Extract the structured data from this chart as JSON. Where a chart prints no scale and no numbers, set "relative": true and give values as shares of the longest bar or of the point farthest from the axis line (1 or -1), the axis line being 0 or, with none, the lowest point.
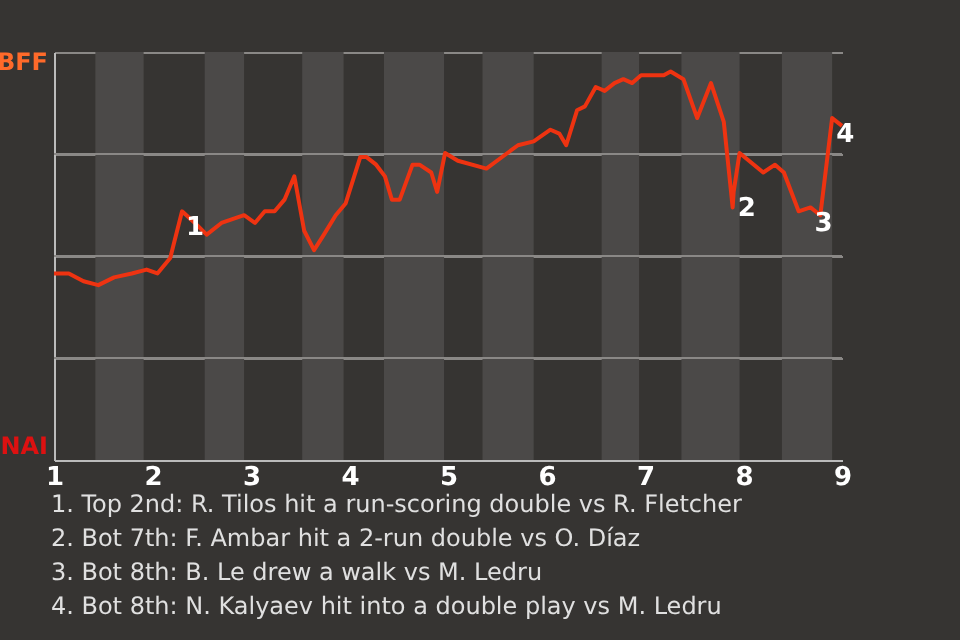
{
  "chart_data": {
    "type": "line",
    "relative": true,
    "x": [
      1.0,
      1.15,
      1.3,
      1.45,
      1.61,
      1.79,
      1.94,
      2.05,
      2.18,
      2.3,
      2.43,
      2.55,
      2.7,
      2.93,
      3.04,
      3.14,
      3.24,
      3.34,
      3.44,
      3.54,
      3.64,
      3.74,
      3.86,
      3.96,
      4.11,
      4.17,
      4.27,
      4.36,
      4.43,
      4.51,
      4.64,
      4.71,
      4.83,
      4.89,
      4.97,
      5.1,
      5.39,
      5.71,
      5.87,
      6.04,
      6.13,
      6.2,
      6.31,
      6.39,
      6.5,
      6.59,
      6.69,
      6.78,
      6.87,
      6.96,
      7.04,
      7.11,
      7.19,
      7.26,
      7.39,
      7.53,
      7.67,
      7.8,
      7.89,
      7.9,
      7.96,
      8.2,
      8.32,
      8.41,
      8.56,
      8.68,
      8.78,
      8.9,
      9.0
    ],
    "series": [
      {
        "color": "#ee3311",
        "values": [
          0.48,
          0.48,
          0.46,
          0.45,
          0.47,
          0.48,
          0.49,
          0.48,
          0.52,
          0.64,
          0.61,
          0.58,
          0.61,
          0.63,
          0.61,
          0.64,
          0.64,
          0.67,
          0.73,
          0.59,
          0.54,
          0.58,
          0.63,
          0.66,
          0.78,
          0.78,
          0.76,
          0.73,
          0.67,
          0.67,
          0.76,
          0.76,
          0.74,
          0.69,
          0.79,
          0.77,
          0.75,
          0.81,
          0.82,
          0.85,
          0.84,
          0.81,
          0.9,
          0.91,
          0.96,
          0.95,
          0.97,
          0.98,
          0.97,
          0.99,
          0.99,
          0.99,
          0.99,
          1,
          0.98,
          0.88,
          0.97,
          0.87,
          0.65,
          0.69,
          0.79,
          0.74,
          0.76,
          0.74,
          0.64,
          0.65,
          0.63,
          0.88,
          0.86
        ]
      }
    ],
    "xlim": [
      1,
      9
    ],
    "xticks": [
      1,
      2,
      3,
      4,
      5,
      6,
      7,
      8,
      9
    ],
    "grid": "y",
    "bands": [
      {
        "axis": "x",
        "from": 1.42,
        "to": 1.91,
        "color": "#4b4948"
      },
      {
        "axis": "x",
        "from": 2.53,
        "to": 2.93,
        "color": "#4b4948"
      },
      {
        "axis": "x",
        "from": 3.52,
        "to": 3.94,
        "color": "#4b4948"
      },
      {
        "axis": "x",
        "from": 4.35,
        "to": 4.96,
        "color": "#4b4948"
      },
      {
        "axis": "x",
        "from": 5.35,
        "to": 5.87,
        "color": "#4b4948"
      },
      {
        "axis": "x",
        "from": 6.56,
        "to": 6.94,
        "color": "#4b4948"
      },
      {
        "axis": "x",
        "from": 7.37,
        "to": 7.96,
        "color": "#4b4948"
      },
      {
        "axis": "x",
        "from": 8.39,
        "to": 8.9,
        "color": "#4b4948"
      }
    ],
    "annotations": [
      "BFF",
      "NAI",
      {
        "text": "1",
        "x": 2.3,
        "y": 0.64
      },
      {
        "text": "2",
        "x": 7.9,
        "y": 0.69
      },
      {
        "text": "3",
        "x": 8.68,
        "y": 0.65
      },
      {
        "text": "4",
        "x": 8.9,
        "y": 0.88
      },
      "1. Top 2nd: R. Tilos hit a run-scoring double vs R. Fletcher",
      "2. Bot 7th: F. Ambar hit a 2-run double vs O. Díaz",
      "3. Bot 8th: B. Le drew a walk vs M. Ledru",
      "4. Bot 8th: N. Kalyaev hit into a double play vs M. Ledru"
    ]
  }
}
